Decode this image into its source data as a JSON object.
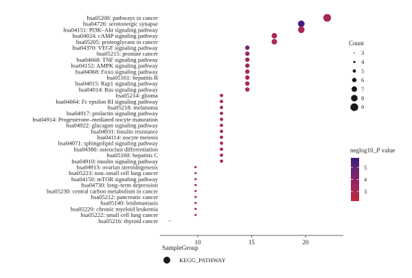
{
  "chart_data": {
    "type": "scatter",
    "title": "",
    "xlabel": "",
    "ylabel": "",
    "xlim": [
      6.5,
      23.5
    ],
    "xticks": [
      "10",
      "15",
      "20"
    ],
    "grid": false,
    "size_legend": {
      "title": "Count",
      "values": [
        "3",
        "4",
        "5",
        "6",
        "7",
        "8",
        "9"
      ],
      "position": "right"
    },
    "color_legend": {
      "title_prefix": "neglog10_",
      "title_italic": "P",
      "title_suffix": " value",
      "ticks": [
        "5",
        "4",
        "3"
      ],
      "range": [
        2.2,
        5.8
      ],
      "position": "right",
      "colors": [
        "#3b1e7e",
        "#8e2466",
        "#c32a3e"
      ]
    },
    "group_legend": {
      "title": "SampleGroup",
      "label": "KEGG_PATHWAY"
    },
    "points": [
      {
        "label": "hsa05200: pathways in cancer",
        "x": 22.0,
        "count": 9,
        "p": 3.2
      },
      {
        "label": "hsa04726: serotonergic synapse",
        "x": 19.6,
        "count": 8,
        "p": 5.6
      },
      {
        "label": "hsa04151: PI3K–Akt signaling pathway",
        "x": 19.6,
        "count": 8,
        "p": 3.0
      },
      {
        "label": "hsa04024: cAMP signaling pathway",
        "x": 17.1,
        "count": 7,
        "p": 2.9
      },
      {
        "label": "hsa05205: proteoglycans in cancer",
        "x": 17.1,
        "count": 7,
        "p": 3.0
      },
      {
        "label": "hsa04370: VEGF signaling pathway",
        "x": 14.6,
        "count": 6,
        "p": 4.5
      },
      {
        "label": "hsa05215: prostate cancer",
        "x": 14.6,
        "count": 6,
        "p": 3.7
      },
      {
        "label": "hsa04668: TNF signaling pathway",
        "x": 14.6,
        "count": 6,
        "p": 3.5
      },
      {
        "label": "hsa04152: AMPK signaling pathway",
        "x": 14.6,
        "count": 6,
        "p": 3.4
      },
      {
        "label": "hsa04068: Foxo signaling pathway",
        "x": 14.6,
        "count": 6,
        "p": 3.3
      },
      {
        "label": "hsa05161: hepatitis B",
        "x": 14.6,
        "count": 6,
        "p": 3.2
      },
      {
        "label": "hsa04015: Rap1 signaling pathway",
        "x": 14.6,
        "count": 6,
        "p": 2.8
      },
      {
        "label": "hsa04014: Ras signaling pathway",
        "x": 14.6,
        "count": 6,
        "p": 2.7
      },
      {
        "label": "hsa05214: glioma",
        "x": 12.2,
        "count": 5,
        "p": 3.1
      },
      {
        "label": "hsa04664: Fc epsilon RI signaling pathway",
        "x": 12.2,
        "count": 5,
        "p": 3.1
      },
      {
        "label": "hsa05218: melanoma",
        "x": 12.2,
        "count": 5,
        "p": 3.0
      },
      {
        "label": "hsa04917: prolactin signaling pathway",
        "x": 12.2,
        "count": 5,
        "p": 3.0
      },
      {
        "label": "hsa04914: Progesterone–mediated oocyte maturation",
        "x": 12.2,
        "count": 5,
        "p": 3.0
      },
      {
        "label": "hsa04922: glucagon signaling pathway",
        "x": 12.2,
        "count": 5,
        "p": 2.9
      },
      {
        "label": "hsa04931: Insulin resistance",
        "x": 12.2,
        "count": 5,
        "p": 2.9
      },
      {
        "label": "hsa04114: oocyte meiosis",
        "x": 12.2,
        "count": 5,
        "p": 2.8
      },
      {
        "label": "hsa04071: sphingolipid signaling pathway",
        "x": 12.2,
        "count": 5,
        "p": 2.8
      },
      {
        "label": "hsa04380: osteoclast differentiation",
        "x": 12.2,
        "count": 5,
        "p": 2.8
      },
      {
        "label": "hsa05160: hepatitis C",
        "x": 12.2,
        "count": 5,
        "p": 2.7
      },
      {
        "label": "hsa04910: insulin signaling pathway",
        "x": 12.2,
        "count": 5,
        "p": 2.7
      },
      {
        "label": "hsa04913: ovarian steroidogenesis",
        "x": 9.8,
        "count": 4,
        "p": 3.0
      },
      {
        "label": "hsa05223: non–small cell lung cancer",
        "x": 9.8,
        "count": 4,
        "p": 2.9
      },
      {
        "label": "hsa04150: mTOR signaling pathway",
        "x": 9.8,
        "count": 4,
        "p": 2.8
      },
      {
        "label": "hsa04730: long–term depression",
        "x": 9.8,
        "count": 4,
        "p": 2.8
      },
      {
        "label": "hsa05230: central carbon metabolism in cancer",
        "x": 9.8,
        "count": 4,
        "p": 2.7
      },
      {
        "label": "hsa05212: pancreatic cancer",
        "x": 9.8,
        "count": 4,
        "p": 2.7
      },
      {
        "label": "hsa05140: leishmaniasis",
        "x": 9.8,
        "count": 4,
        "p": 2.7
      },
      {
        "label": "hsa05220: chronic myeloid leukemia",
        "x": 9.8,
        "count": 4,
        "p": 2.6
      },
      {
        "label": "hsa05222: small cell lung cancer",
        "x": 9.8,
        "count": 4,
        "p": 2.6
      },
      {
        "label": "hsa05216: thyroid cancer",
        "x": 7.4,
        "count": 3,
        "p": 3.0
      }
    ]
  }
}
